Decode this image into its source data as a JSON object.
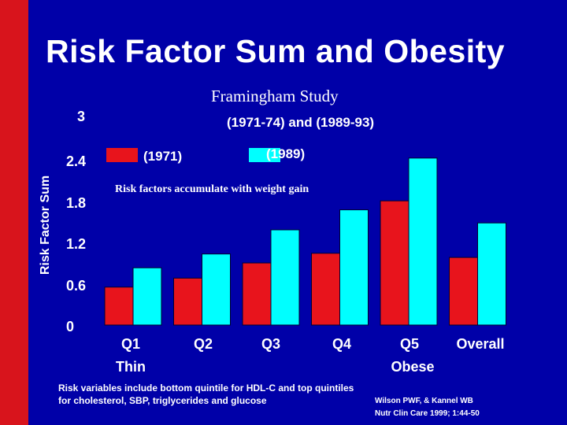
{
  "title": "Risk Factor Sum and Obesity",
  "subtitle": "Framingham Study",
  "period": "(1971-74) and (1989-93)",
  "annotation": "Risk factors accumulate with weight gain",
  "footnote": "Risk variables include bottom quintile for HDL-C and top quintiles for cholesterol, SBP, triglycerides and glucose",
  "citation_line1": "Wilson PWF, & Kannel WB",
  "citation_line2": "Nutr Clin Care 1999; 1:44-50",
  "colors": {
    "background": "#0000a8",
    "stripe": "#d8141c",
    "series_1971": "#e8141c",
    "series_1989": "#00ffff"
  },
  "chart_data": {
    "type": "bar",
    "title": "Risk Factor Sum and Obesity",
    "ylabel": "Risk Factor Sum",
    "xlabel": "",
    "ylim": [
      0,
      3
    ],
    "yticks": [
      "0",
      "0.6",
      "1.2",
      "1.8",
      "2.4",
      "3"
    ],
    "categories": [
      "Q1",
      "Q2",
      "Q3",
      "Q4",
      "Q5",
      "Overall"
    ],
    "category_sublabels": [
      "Thin",
      "",
      "",
      "",
      "Obese",
      ""
    ],
    "series": [
      {
        "name": "(1971)",
        "values": [
          0.55,
          0.68,
          0.9,
          1.04,
          1.8,
          0.98
        ]
      },
      {
        "name": "(1989)",
        "values": [
          0.83,
          1.03,
          1.38,
          1.67,
          2.42,
          1.48
        ]
      }
    ]
  }
}
